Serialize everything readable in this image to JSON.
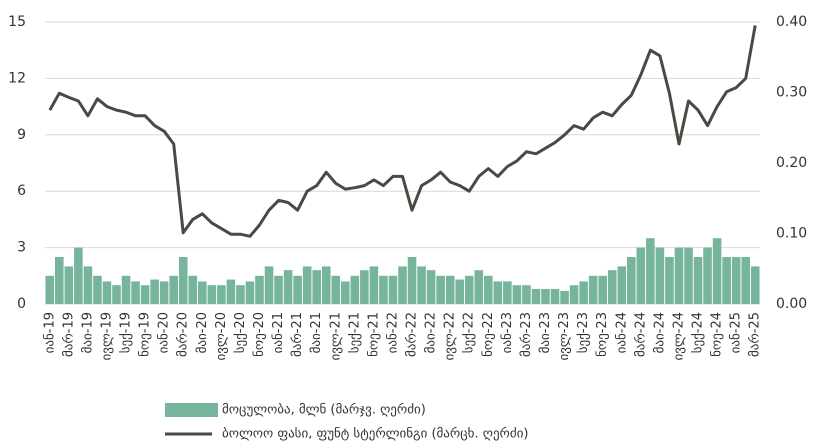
{
  "chart_data": {
    "type": "bar_line",
    "categories": [
      "იან-19",
      null,
      "მარ-19",
      null,
      "მაი-19",
      null,
      "ივლ-19",
      null,
      "სექ-19",
      null,
      "ნოე-19",
      null,
      "იან-20",
      null,
      "მარ-20",
      null,
      "მაი-20",
      null,
      "ივლ-20",
      null,
      "სექ-20",
      null,
      "ნოე-20",
      null,
      "იან-21",
      null,
      "მარ-21",
      null,
      "მაი-21",
      null,
      "ივლ-21",
      null,
      "სექ-21",
      null,
      "ნოე-21",
      null,
      "იან-22",
      null,
      "მარ-22",
      null,
      "მაი-22",
      null,
      "ივლ-22",
      null,
      "სექ-22",
      null,
      "ნოე-22",
      null,
      "იან-23",
      null,
      "მარ-23",
      null,
      "მაი-23",
      null,
      "ივლ-23",
      null,
      "სექ-23",
      null,
      "ნოე-23",
      null,
      "იან-24",
      null,
      "მარ-24",
      null,
      "მაი-24",
      null,
      "ივლ-24",
      null,
      "სექ-24",
      null,
      "ნოე-24",
      null,
      "იან-25",
      null,
      "მარ-25"
    ],
    "series": [
      {
        "name": "მოცულობა, მლნ (მარჯვ. ღერძი)",
        "color": "#76b49b",
        "kind": "bar",
        "values": [
          1.5,
          2.5,
          2.0,
          3.0,
          2.0,
          1.5,
          1.2,
          1.0,
          1.5,
          1.2,
          1.0,
          1.3,
          1.2,
          1.5,
          2.5,
          1.5,
          1.2,
          1.0,
          1.0,
          1.3,
          1.0,
          1.2,
          1.5,
          2.0,
          1.5,
          1.8,
          1.5,
          2.0,
          1.8,
          2.0,
          1.5,
          1.2,
          1.5,
          1.8,
          2.0,
          1.5,
          1.5,
          2.0,
          2.5,
          2.0,
          1.8,
          1.5,
          1.5,
          1.3,
          1.5,
          1.8,
          1.5,
          1.2,
          1.2,
          1.0,
          1.0,
          0.8,
          0.8,
          0.8,
          0.7,
          1.0,
          1.2,
          1.5,
          1.5,
          1.8,
          2.0,
          2.5,
          3.0,
          3.5,
          3.0,
          2.5,
          3.0,
          3.0,
          2.5,
          3.0,
          3.5,
          2.5,
          2.5,
          2.5,
          2.0
        ]
      },
      {
        "name": "ბოლოო ფასი, ფუნტ სტერლინგი (მარცხ. ღერძი)",
        "color": "#4a4a42",
        "kind": "line",
        "axis": "y2",
        "values": [
          0.275,
          0.299,
          0.293,
          0.288,
          0.267,
          0.291,
          0.28,
          0.275,
          0.272,
          0.267,
          0.267,
          0.253,
          0.245,
          0.227,
          0.101,
          0.12,
          0.128,
          0.115,
          0.107,
          0.099,
          0.099,
          0.096,
          0.112,
          0.133,
          0.147,
          0.144,
          0.133,
          0.16,
          0.168,
          0.187,
          0.171,
          0.163,
          0.165,
          0.168,
          0.176,
          0.168,
          0.181,
          0.181,
          0.133,
          0.168,
          0.176,
          0.187,
          0.173,
          0.168,
          0.16,
          0.181,
          0.192,
          0.181,
          0.195,
          0.203,
          0.216,
          0.213,
          0.221,
          0.229,
          0.24,
          0.253,
          0.248,
          0.264,
          0.272,
          0.267,
          0.283,
          0.296,
          0.325,
          0.36,
          0.352,
          0.299,
          0.227,
          0.288,
          0.275,
          0.253,
          0.28,
          0.301,
          0.307,
          0.32,
          0.395
        ]
      }
    ],
    "ylim": [
      0,
      15
    ],
    "yticks": [
      0,
      3,
      6,
      9,
      12,
      15
    ],
    "y2lim": [
      0,
      0.4
    ],
    "y2ticks": [
      {
        "value": 0,
        "label": "0.00"
      },
      {
        "value": 0.1,
        "label": "0.10"
      },
      {
        "value": 0.2,
        "label": "0.20"
      },
      {
        "value": 0.3,
        "label": "0.30"
      },
      {
        "value": 0.4,
        "label": "0.40"
      }
    ],
    "grid": true,
    "legend": "bottom"
  }
}
